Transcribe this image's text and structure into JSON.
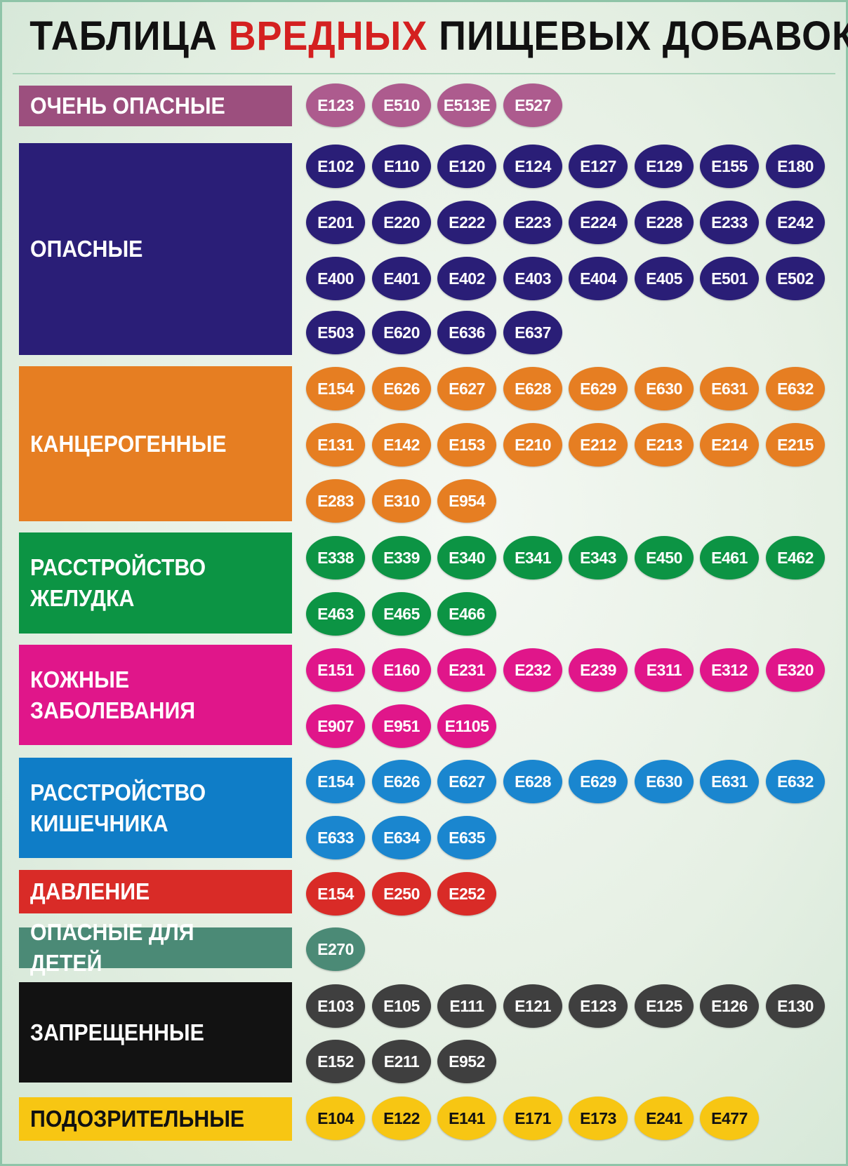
{
  "title": {
    "part1": "ТАБЛИЦА ",
    "accent": "ВРЕДНЫХ",
    "part2": " ПИЩЕВЫХ ДОБАВОК",
    "accent_color": "#d42020"
  },
  "categories": [
    {
      "label": "ОЧЕНЬ ОПАСНЫЕ",
      "color": "#9c4f7e",
      "pill_color": "#ad5b8e",
      "text_color": "#ffffff",
      "codes": [
        "E123",
        "E510",
        "E513E",
        "E527"
      ]
    },
    {
      "label": "ОПАСНЫЕ",
      "color": "#2a1e77",
      "pill_color": "#2a1e77",
      "text_color": "#ffffff",
      "codes": [
        "E102",
        "E110",
        "E120",
        "E124",
        "E127",
        "E129",
        "E155",
        "E180",
        "E201",
        "E220",
        "E222",
        "E223",
        "E224",
        "E228",
        "E233",
        "E242",
        "E400",
        "E401",
        "E402",
        "E403",
        "E404",
        "E405",
        "E501",
        "E502",
        "E503",
        "E620",
        "E636",
        "E637"
      ]
    },
    {
      "label": "КАНЦЕРОГЕННЫЕ",
      "color": "#e67e22",
      "pill_color": "#e67e22",
      "text_color": "#ffffff",
      "codes": [
        "E154",
        "E626",
        "E627",
        "E628",
        "E629",
        "E630",
        "E631",
        "E632",
        "E131",
        "E142",
        "E153",
        "E210",
        "E212",
        "E213",
        "E214",
        "E215",
        "E283",
        "E310",
        "E954"
      ]
    },
    {
      "label": "РАССТРОЙСТВО\nЖЕЛУДКА",
      "color": "#0c9444",
      "pill_color": "#0c9444",
      "text_color": "#ffffff",
      "codes": [
        "E338",
        "E339",
        "E340",
        "E341",
        "E343",
        "E450",
        "E461",
        "E462",
        "E463",
        "E465",
        "E466"
      ]
    },
    {
      "label": "КОЖНЫЕ\nЗАБОЛЕВАНИЯ",
      "color": "#e0168a",
      "pill_color": "#e0168a",
      "text_color": "#ffffff",
      "codes": [
        "E151",
        "E160",
        "E231",
        "E232",
        "E239",
        "E311",
        "E312",
        "E320",
        "E907",
        "E951",
        "E1105"
      ]
    },
    {
      "label": "РАССТРОЙСТВО\nКИШЕЧНИКА",
      "color": "#0f7dc7",
      "pill_color": "#1a86cf",
      "text_color": "#ffffff",
      "codes": [
        "E154",
        "E626",
        "E627",
        "E628",
        "E629",
        "E630",
        "E631",
        "E632",
        "E633",
        "E634",
        "E635"
      ]
    },
    {
      "label": "ДАВЛЕНИЕ",
      "color": "#d92b27",
      "pill_color": "#d92b27",
      "text_color": "#ffffff",
      "codes": [
        "E154",
        "E250",
        "E252"
      ]
    },
    {
      "label": "ОПАСНЫЕ ДЛЯ ДЕТЕЙ",
      "color": "#4b8a76",
      "pill_color": "#4b8a76",
      "text_color": "#ffffff",
      "codes": [
        "E270"
      ]
    },
    {
      "label": "ЗАПРЕЩЕННЫЕ",
      "color": "#121212",
      "pill_color": "#3f3f3f",
      "text_color": "#ffffff",
      "codes": [
        "E103",
        "E105",
        "E111",
        "E121",
        "E123",
        "E125",
        "E126",
        "E130",
        "E152",
        "E211",
        "E952"
      ]
    },
    {
      "label": "ПОДОЗРИТЕЛЬНЫЕ",
      "color": "#f7c613",
      "pill_color": "#f7c613",
      "text_color": "#111111",
      "codes": [
        "E104",
        "E122",
        "E141",
        "E171",
        "E173",
        "E241",
        "E477"
      ]
    }
  ]
}
